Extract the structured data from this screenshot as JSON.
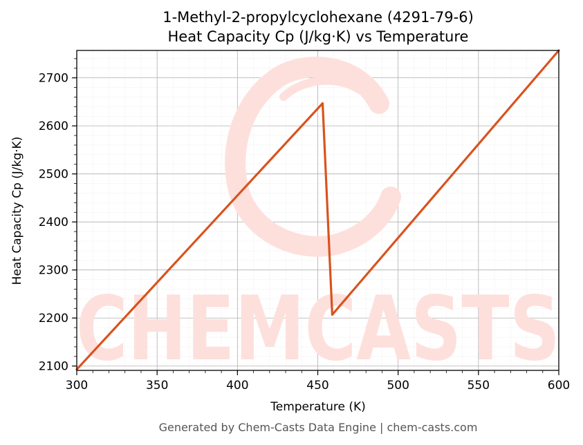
{
  "chart_data": {
    "type": "line",
    "title": "1-Methyl-2-propylcyclohexane (4291-79-6)",
    "subtitle": "Heat Capacity Cp (J/kg·K) vs Temperature",
    "xlabel": "Temperature (K)",
    "ylabel": "Heat Capacity Cp (J/kg·K)",
    "xlim": [
      300,
      600
    ],
    "ylim": [
      2091,
      2757
    ],
    "xticks": [
      300,
      350,
      400,
      450,
      500,
      550,
      600
    ],
    "yticks": [
      2100,
      2200,
      2300,
      2400,
      2500,
      2600,
      2700
    ],
    "grid": true,
    "series": [
      {
        "x": [
          300,
          453,
          459,
          600
        ],
        "y": [
          2093,
          2647,
          2207,
          2757
        ]
      }
    ],
    "line_color": "#d9531e"
  },
  "watermark": {
    "text": "CHEMCASTS",
    "color": "#fde0dc"
  },
  "footer": "Generated by Chem-Casts Data Engine | chem-casts.com"
}
